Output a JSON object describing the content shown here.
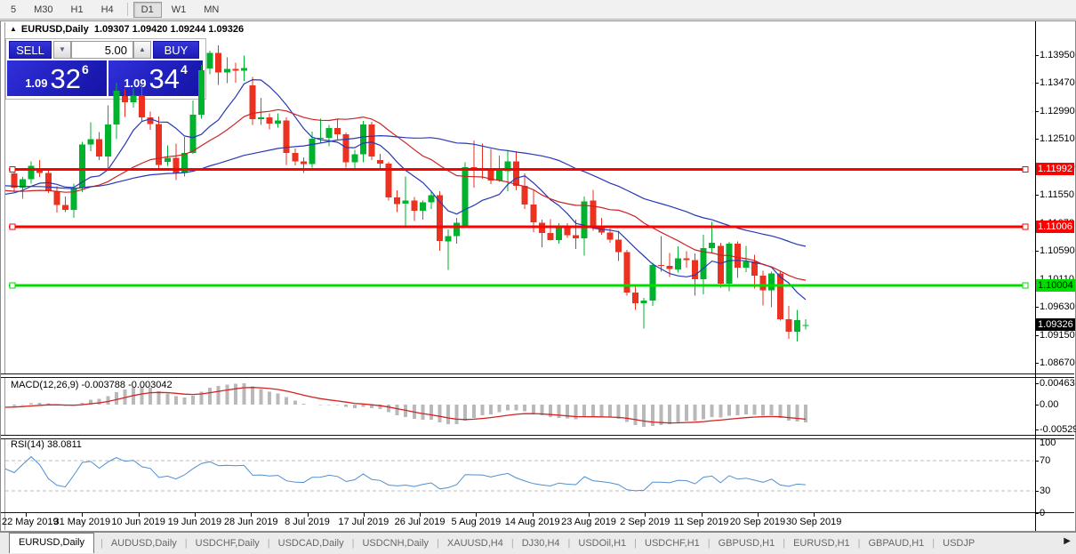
{
  "toolbar": {
    "timeframes": [
      {
        "label": "5",
        "active": false
      },
      {
        "label": "M30",
        "active": false
      },
      {
        "label": "H1",
        "active": false
      },
      {
        "label": "H4",
        "active": false
      },
      {
        "label": "D1",
        "active": true
      },
      {
        "label": "W1",
        "active": false
      },
      {
        "label": "MN",
        "active": false
      }
    ]
  },
  "chart": {
    "title": {
      "collapse_icon": "▲",
      "symbol": "EURUSD,Daily",
      "ohlc": "1.09307 1.09420 1.09244 1.09326"
    },
    "one_click": {
      "sell_label": "SELL",
      "buy_label": "BUY",
      "volume": "5.00",
      "bid": {
        "prefix": "1.09",
        "main": "32",
        "sup": "6"
      },
      "ask": {
        "prefix": "1.09",
        "main": "34",
        "sup": "4"
      }
    },
    "colors": {
      "candle_up": "#00B22D",
      "candle_down": "#EB3220",
      "ma_fast": "#2638B8",
      "ma_mid": "#CC2222",
      "ma_slow": "#2638B8",
      "hline_red": "#FF0000",
      "hline_green": "#00DD00",
      "macd_hist": "#B9B9B9",
      "macd_signal": "#D22222",
      "rsi_line": "#4F8FD0",
      "panel_blue": "#2424CE",
      "current_label_bg": "#000000"
    },
    "price_axis": {
      "ticks": [
        "1.13950",
        "1.13470",
        "1.12990",
        "1.12510",
        "1.12030",
        "1.11550",
        "1.11070",
        "1.10590",
        "1.10110",
        "1.09630",
        "1.09150",
        "1.08670"
      ],
      "lines": [
        {
          "price": 1.11992,
          "label": "1.11992",
          "color": "#FF0000",
          "text": "#FFFFFF"
        },
        {
          "price": 1.11006,
          "label": "1.11006",
          "color": "#FF0000",
          "text": "#FFFFFF"
        },
        {
          "price": 1.10004,
          "label": "1.10004",
          "color": "#00DD00",
          "text": "#000000"
        }
      ],
      "current": {
        "price": 1.09326,
        "label": "1.09326"
      }
    },
    "candles": [
      [
        1.1192,
        1.12,
        1.116,
        1.1168
      ],
      [
        1.1168,
        1.1186,
        1.1149,
        1.1182
      ],
      [
        1.1182,
        1.1213,
        1.1175,
        1.1205
      ],
      [
        1.1201,
        1.1215,
        1.1186,
        1.1193
      ],
      [
        1.1193,
        1.12,
        1.1159,
        1.1162
      ],
      [
        1.1162,
        1.117,
        1.1125,
        1.1138
      ],
      [
        1.1138,
        1.1153,
        1.1126,
        1.113
      ],
      [
        1.113,
        1.1175,
        1.1116,
        1.1167
      ],
      [
        1.1167,
        1.1246,
        1.116,
        1.1242
      ],
      [
        1.1242,
        1.128,
        1.123,
        1.1251
      ],
      [
        1.1251,
        1.1263,
        1.1215,
        1.1221
      ],
      [
        1.1221,
        1.1309,
        1.1201,
        1.1276
      ],
      [
        1.1276,
        1.1348,
        1.1251,
        1.1334
      ],
      [
        1.1325,
        1.1336,
        1.1289,
        1.1314
      ],
      [
        1.1314,
        1.1338,
        1.1305,
        1.1326
      ],
      [
        1.1326,
        1.1344,
        1.1281,
        1.1288
      ],
      [
        1.1288,
        1.1298,
        1.1267,
        1.1277
      ],
      [
        1.1277,
        1.129,
        1.1201,
        1.1207
      ],
      [
        1.1212,
        1.124,
        1.1205,
        1.1219
      ],
      [
        1.1219,
        1.1243,
        1.1181,
        1.1193
      ],
      [
        1.1193,
        1.1255,
        1.1187,
        1.1227
      ],
      [
        1.1227,
        1.1317,
        1.1226,
        1.1293
      ],
      [
        1.1293,
        1.1378,
        1.1286,
        1.1369
      ],
      [
        1.1372,
        1.1403,
        1.1362,
        1.1399
      ],
      [
        1.1399,
        1.1412,
        1.1344,
        1.1365
      ],
      [
        1.1365,
        1.1391,
        1.1347,
        1.1371
      ],
      [
        1.1371,
        1.1382,
        1.1348,
        1.1368
      ],
      [
        1.1368,
        1.1394,
        1.1351,
        1.1373
      ],
      [
        1.1343,
        1.1358,
        1.1275,
        1.1285
      ],
      [
        1.1285,
        1.1322,
        1.1275,
        1.1288
      ],
      [
        1.1288,
        1.1295,
        1.1268,
        1.1278
      ],
      [
        1.1278,
        1.1295,
        1.1271,
        1.1283
      ],
      [
        1.1283,
        1.1288,
        1.1207,
        1.1227
      ],
      [
        1.1227,
        1.1235,
        1.1206,
        1.1213
      ],
      [
        1.1213,
        1.122,
        1.1193,
        1.1208
      ],
      [
        1.1208,
        1.1264,
        1.1202,
        1.1252
      ],
      [
        1.1252,
        1.1286,
        1.1244,
        1.1253
      ],
      [
        1.1253,
        1.1275,
        1.1239,
        1.127
      ],
      [
        1.127,
        1.1285,
        1.1251,
        1.1259
      ],
      [
        1.1259,
        1.1262,
        1.1202,
        1.1211
      ],
      [
        1.1211,
        1.1233,
        1.1201,
        1.1225
      ],
      [
        1.1225,
        1.1282,
        1.1211,
        1.1276
      ],
      [
        1.1276,
        1.1281,
        1.1215,
        1.1221
      ],
      [
        1.1215,
        1.1226,
        1.1198,
        1.1209
      ],
      [
        1.1209,
        1.1212,
        1.1146,
        1.1151
      ],
      [
        1.1151,
        1.1163,
        1.1126,
        1.114
      ],
      [
        1.114,
        1.1187,
        1.1101,
        1.1146
      ],
      [
        1.1146,
        1.1152,
        1.1111,
        1.1128
      ],
      [
        1.1128,
        1.1146,
        1.1113,
        1.1143
      ],
      [
        1.1143,
        1.1162,
        1.1131,
        1.1155
      ],
      [
        1.1155,
        1.1162,
        1.106,
        1.1076
      ],
      [
        1.1076,
        1.1096,
        1.1027,
        1.1085
      ],
      [
        1.1085,
        1.1116,
        1.1072,
        1.1108
      ],
      [
        1.1102,
        1.1211,
        1.1101,
        1.1203
      ],
      [
        1.1203,
        1.1249,
        1.1168,
        1.12
      ],
      [
        1.12,
        1.1243,
        1.1183,
        1.1199
      ],
      [
        1.1199,
        1.1234,
        1.1174,
        1.118
      ],
      [
        1.118,
        1.1223,
        1.1178,
        1.1199
      ],
      [
        1.1196,
        1.123,
        1.1162,
        1.1213
      ],
      [
        1.1213,
        1.123,
        1.1163,
        1.1171
      ],
      [
        1.1171,
        1.1192,
        1.1131,
        1.1139
      ],
      [
        1.1139,
        1.1164,
        1.1092,
        1.1108
      ],
      [
        1.1108,
        1.1113,
        1.1066,
        1.109
      ],
      [
        1.109,
        1.1114,
        1.1077,
        1.1078
      ],
      [
        1.1078,
        1.1107,
        1.1072,
        1.11
      ],
      [
        1.11,
        1.1107,
        1.1082,
        1.1086
      ],
      [
        1.1086,
        1.1113,
        1.1063,
        1.1081
      ],
      [
        1.1081,
        1.1153,
        1.1051,
        1.1144
      ],
      [
        1.1146,
        1.1164,
        1.1094,
        1.1101
      ],
      [
        1.1101,
        1.1116,
        1.1087,
        1.1091
      ],
      [
        1.1091,
        1.1098,
        1.1073,
        1.1079
      ],
      [
        1.1079,
        1.1094,
        1.1042,
        1.1057
      ],
      [
        1.1057,
        1.1061,
        1.0983,
        1.0988
      ],
      [
        1.0988,
        1.0998,
        1.0958,
        1.097
      ],
      [
        1.097,
        1.0979,
        1.0926,
        1.0974
      ],
      [
        1.0974,
        1.1039,
        1.0965,
        1.1035
      ],
      [
        1.1035,
        1.1085,
        1.1024,
        1.1034
      ],
      [
        1.1034,
        1.1056,
        1.1015,
        1.1028
      ],
      [
        1.1028,
        1.1067,
        1.1022,
        1.1047
      ],
      [
        1.1047,
        1.1059,
        1.1031,
        1.1044
      ],
      [
        1.1044,
        1.1055,
        1.0983,
        1.1011
      ],
      [
        1.1011,
        1.1087,
        1.0985,
        1.1064
      ],
      [
        1.1064,
        1.1109,
        1.1055,
        1.1073
      ],
      [
        1.1068,
        1.1073,
        1.0996,
        1.1003
      ],
      [
        1.1003,
        1.1075,
        1.099,
        1.1072
      ],
      [
        1.1072,
        1.1076,
        1.1013,
        1.1031
      ],
      [
        1.1031,
        1.1068,
        1.1023,
        1.1041
      ],
      [
        1.1041,
        1.1053,
        1.0995,
        1.1017
      ],
      [
        1.1017,
        1.1025,
        1.0966,
        1.0992
      ],
      [
        1.0992,
        1.1024,
        1.0963,
        1.1021
      ],
      [
        1.1021,
        1.1024,
        1.094,
        1.0942
      ],
      [
        1.0942,
        1.0965,
        1.0909,
        1.0921
      ],
      [
        1.0921,
        1.0958,
        1.0904,
        1.0941
      ],
      [
        1.09307,
        1.0942,
        1.09244,
        1.09326
      ]
    ],
    "date_axis": {
      "labels": [
        "22 May 2019",
        "31 May 2019",
        "10 Jun 2019",
        "19 Jun 2019",
        "28 Jun 2019",
        "8 Jul 2019",
        "17 Jul 2019",
        "26 Jul 2019",
        "5 Aug 2019",
        "14 Aug 2019",
        "23 Aug 2019",
        "2 Sep 2019",
        "11 Sep 2019",
        "20 Sep 2019",
        "30 Sep 2019"
      ]
    },
    "indicators": {
      "macd": {
        "label": "MACD(12,26,9) -0.003788 -0.003042",
        "axis": [
          "0.00463",
          "0.00",
          "-0.00529"
        ]
      },
      "rsi": {
        "label": "RSI(14) 38.0811",
        "axis": [
          "100",
          "70",
          "30",
          "0"
        ],
        "levels": [
          70,
          30
        ]
      }
    }
  },
  "tabs": {
    "items": [
      {
        "label": "EURUSD,Daily",
        "active": true
      },
      {
        "label": "AUDUSD,Daily",
        "active": false
      },
      {
        "label": "USDCHF,Daily",
        "active": false
      },
      {
        "label": "USDCAD,Daily",
        "active": false
      },
      {
        "label": "USDCNH,Daily",
        "active": false
      },
      {
        "label": "XAUUSD,H4",
        "active": false
      },
      {
        "label": "DJ30,H4",
        "active": false
      },
      {
        "label": "USDOil,H1",
        "active": false
      },
      {
        "label": "USDCHF,H1",
        "active": false
      },
      {
        "label": "GBPUSD,H1",
        "active": false
      },
      {
        "label": "EURUSD,H1",
        "active": false
      },
      {
        "label": "GBPAUD,H1",
        "active": false
      },
      {
        "label": "USDJP",
        "active": false
      }
    ],
    "scroll_right": "▶"
  }
}
